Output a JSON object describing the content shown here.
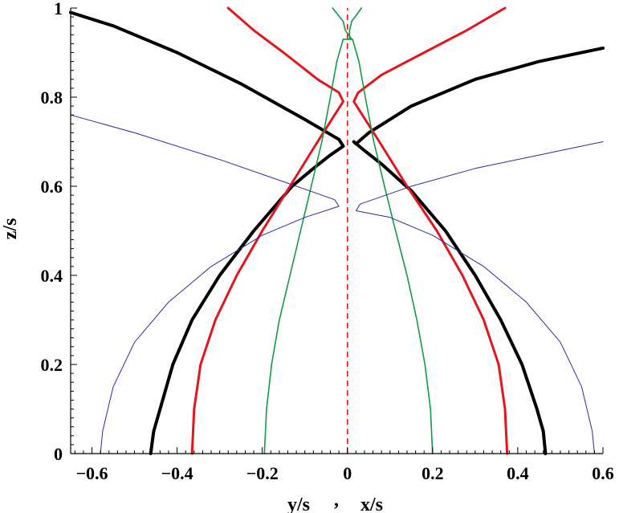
{
  "chart_data": {
    "type": "line",
    "xlabel_left": "y/s",
    "xlabel_sep": ",",
    "xlabel_right": "x/s",
    "ylabel": "z/s",
    "xlim": [
      -0.65,
      0.6
    ],
    "ylim": [
      0,
      1
    ],
    "grid": false,
    "x_ticks": [
      -0.6,
      -0.4,
      -0.2,
      0,
      0.2,
      0.4,
      0.6
    ],
    "x_tick_labels": [
      "−0.6",
      "−0.4",
      "−0.2",
      "0",
      "0.2",
      "0.4",
      "0.6"
    ],
    "y_ticks": [
      0,
      0.2,
      0.4,
      0.6,
      0.8,
      1
    ],
    "y_tick_labels": [
      "0",
      "0.2",
      "0.4",
      "0.6",
      "0.8",
      "1"
    ],
    "colors": {
      "black": "#000000",
      "red": "#e3161c",
      "green": "#139a45",
      "blue": "#2b2b9e",
      "dashed": "#e3161c"
    },
    "series": [
      {
        "color": "black",
        "width": 4,
        "points": [
          [
            -0.462,
            0
          ],
          [
            -0.455,
            0.05
          ],
          [
            -0.44,
            0.1
          ],
          [
            -0.41,
            0.2
          ],
          [
            -0.365,
            0.3
          ],
          [
            -0.3,
            0.4
          ],
          [
            -0.22,
            0.5
          ],
          [
            -0.13,
            0.6
          ],
          [
            -0.08,
            0.64
          ],
          [
            -0.04,
            0.67
          ],
          [
            -0.01,
            0.69
          ],
          [
            -0.02,
            0.705
          ],
          [
            -0.1,
            0.75
          ],
          [
            -0.25,
            0.83
          ],
          [
            -0.4,
            0.9
          ],
          [
            -0.55,
            0.96
          ],
          [
            -0.65,
            0.99
          ]
        ]
      },
      {
        "color": "black",
        "width": 4,
        "points": [
          [
            0.465,
            0
          ],
          [
            0.46,
            0.05
          ],
          [
            0.445,
            0.1
          ],
          [
            0.41,
            0.2
          ],
          [
            0.36,
            0.3
          ],
          [
            0.3,
            0.4
          ],
          [
            0.23,
            0.5
          ],
          [
            0.15,
            0.59
          ],
          [
            0.08,
            0.65
          ],
          [
            0.04,
            0.68
          ],
          [
            0.015,
            0.7
          ],
          [
            0.02,
            0.695
          ],
          [
            0.05,
            0.72
          ],
          [
            0.15,
            0.78
          ],
          [
            0.3,
            0.84
          ],
          [
            0.45,
            0.88
          ],
          [
            0.6,
            0.91
          ]
        ]
      },
      {
        "color": "red",
        "width": 3,
        "points": [
          [
            -0.365,
            0
          ],
          [
            -0.36,
            0.1
          ],
          [
            -0.345,
            0.2
          ],
          [
            -0.31,
            0.3
          ],
          [
            -0.26,
            0.4
          ],
          [
            -0.2,
            0.5
          ],
          [
            -0.135,
            0.6
          ],
          [
            -0.07,
            0.7
          ],
          [
            -0.03,
            0.76
          ],
          [
            -0.01,
            0.79
          ],
          [
            -0.02,
            0.81
          ],
          [
            -0.07,
            0.84
          ],
          [
            -0.15,
            0.9
          ],
          [
            -0.22,
            0.95
          ],
          [
            -0.28,
            1.0
          ]
        ]
      },
      {
        "color": "red",
        "width": 3,
        "points": [
          [
            0.375,
            0
          ],
          [
            0.37,
            0.1
          ],
          [
            0.355,
            0.2
          ],
          [
            0.32,
            0.3
          ],
          [
            0.27,
            0.4
          ],
          [
            0.21,
            0.5
          ],
          [
            0.14,
            0.6
          ],
          [
            0.075,
            0.7
          ],
          [
            0.035,
            0.76
          ],
          [
            0.015,
            0.79
          ],
          [
            0.025,
            0.81
          ],
          [
            0.08,
            0.85
          ],
          [
            0.18,
            0.9
          ],
          [
            0.28,
            0.95
          ],
          [
            0.37,
            1.0
          ]
        ]
      },
      {
        "color": "green",
        "width": 1.6,
        "points": [
          [
            -0.195,
            0
          ],
          [
            -0.19,
            0.1
          ],
          [
            -0.178,
            0.2
          ],
          [
            -0.16,
            0.3
          ],
          [
            -0.135,
            0.4
          ],
          [
            -0.11,
            0.5
          ],
          [
            -0.085,
            0.6
          ],
          [
            -0.06,
            0.7
          ],
          [
            -0.04,
            0.8
          ],
          [
            -0.025,
            0.88
          ],
          [
            -0.01,
            0.93
          ],
          [
            0.01,
            0.93
          ],
          [
            -0.005,
            0.95
          ],
          [
            -0.01,
            0.97
          ],
          [
            -0.035,
            1.0
          ]
        ]
      },
      {
        "color": "green",
        "width": 1.6,
        "points": [
          [
            0.2,
            0
          ],
          [
            0.195,
            0.1
          ],
          [
            0.182,
            0.2
          ],
          [
            0.163,
            0.3
          ],
          [
            0.14,
            0.4
          ],
          [
            0.113,
            0.5
          ],
          [
            0.087,
            0.6
          ],
          [
            0.062,
            0.7
          ],
          [
            0.042,
            0.8
          ],
          [
            0.027,
            0.88
          ],
          [
            0.012,
            0.93
          ],
          [
            0.005,
            0.93
          ],
          [
            0.005,
            0.95
          ],
          [
            0.01,
            0.97
          ],
          [
            0.033,
            1.0
          ]
        ]
      },
      {
        "color": "blue",
        "width": 1,
        "points": [
          [
            -0.58,
            0
          ],
          [
            -0.575,
            0.05
          ],
          [
            -0.55,
            0.15
          ],
          [
            -0.5,
            0.25
          ],
          [
            -0.42,
            0.34
          ],
          [
            -0.32,
            0.42
          ],
          [
            -0.2,
            0.49
          ],
          [
            -0.1,
            0.53
          ],
          [
            -0.02,
            0.555
          ],
          [
            -0.03,
            0.57
          ],
          [
            -0.15,
            0.61
          ],
          [
            -0.3,
            0.66
          ],
          [
            -0.5,
            0.72
          ],
          [
            -0.65,
            0.76
          ]
        ]
      },
      {
        "color": "blue",
        "width": 1,
        "points": [
          [
            0.58,
            0
          ],
          [
            0.575,
            0.05
          ],
          [
            0.55,
            0.15
          ],
          [
            0.5,
            0.25
          ],
          [
            0.42,
            0.34
          ],
          [
            0.32,
            0.42
          ],
          [
            0.2,
            0.49
          ],
          [
            0.1,
            0.53
          ],
          [
            0.02,
            0.545
          ],
          [
            0.03,
            0.56
          ],
          [
            0.15,
            0.6
          ],
          [
            0.3,
            0.64
          ],
          [
            0.45,
            0.67
          ],
          [
            0.6,
            0.7
          ]
        ]
      }
    ],
    "center_line": {
      "x": 0,
      "style": "dashed",
      "color": "dashed"
    }
  }
}
